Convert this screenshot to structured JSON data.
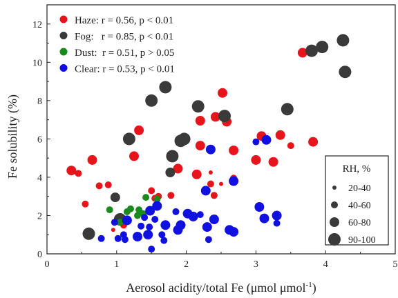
{
  "chart_data": {
    "type": "scatter",
    "xlabel": "Aerosol acidity/total Fe (μmol μmol",
    "xlabel_sup": "-1",
    "xlabel_close": ")",
    "ylabel": "Fe solubility (%)",
    "xlim": [
      0,
      5
    ],
    "ylim": [
      0,
      13
    ],
    "xticks": [
      "0",
      "1",
      "2",
      "3",
      "4",
      "5"
    ],
    "yticks": [
      "0",
      "2",
      "4",
      "6",
      "8",
      "10",
      "12"
    ],
    "grid": false,
    "legend_position": "top-left",
    "series": [
      {
        "name": "Haze: r = 0.56, p < 0.01",
        "color": "#e8141b",
        "points": [
          [
            0.35,
            4.35,
            "60-80"
          ],
          [
            0.45,
            4.2,
            "40-60"
          ],
          [
            0.55,
            2.6,
            "40-60"
          ],
          [
            0.65,
            4.9,
            "60-80"
          ],
          [
            0.75,
            3.55,
            "40-60"
          ],
          [
            0.88,
            3.6,
            "40-60"
          ],
          [
            0.95,
            1.25,
            "20-40"
          ],
          [
            1.1,
            1.5,
            "40-60"
          ],
          [
            1.25,
            5.1,
            "60-80"
          ],
          [
            1.32,
            6.45,
            "60-80"
          ],
          [
            1.5,
            3.3,
            "40-60"
          ],
          [
            1.55,
            2.9,
            "40-60"
          ],
          [
            1.6,
            3.0,
            "40-60"
          ],
          [
            1.78,
            3.05,
            "40-60"
          ],
          [
            1.88,
            4.45,
            "60-80"
          ],
          [
            2.15,
            4.15,
            "60-80"
          ],
          [
            2.2,
            6.95,
            "60-80"
          ],
          [
            2.2,
            5.65,
            "60-80"
          ],
          [
            2.35,
            3.65,
            "40-60"
          ],
          [
            2.35,
            4.25,
            "20-40"
          ],
          [
            2.42,
            7.15,
            "60-80"
          ],
          [
            2.4,
            3.05,
            "40-60"
          ],
          [
            2.5,
            3.65,
            "20-40"
          ],
          [
            2.52,
            8.4,
            "60-80"
          ],
          [
            2.58,
            6.9,
            "60-80"
          ],
          [
            2.68,
            5.4,
            "60-80"
          ],
          [
            2.68,
            3.95,
            "40-60"
          ],
          [
            3.0,
            4.9,
            "60-80"
          ],
          [
            3.08,
            6.15,
            "60-80"
          ],
          [
            3.25,
            4.8,
            "60-80"
          ],
          [
            3.35,
            6.2,
            "60-80"
          ],
          [
            3.5,
            5.65,
            "40-60"
          ],
          [
            3.67,
            10.5,
            "60-80"
          ],
          [
            3.82,
            5.85,
            "60-80"
          ]
        ]
      },
      {
        "name": "Fog:   r = 0.85, p < 0.01",
        "color": "#3a3a3a",
        "points": [
          [
            0.6,
            1.05,
            "90-100"
          ],
          [
            0.98,
            2.95,
            "60-80"
          ],
          [
            1.05,
            1.8,
            "90-100"
          ],
          [
            1.18,
            6.0,
            "90-100"
          ],
          [
            1.5,
            8.0,
            "90-100"
          ],
          [
            1.7,
            8.7,
            "90-100"
          ],
          [
            1.77,
            4.25,
            "60-80"
          ],
          [
            1.8,
            5.1,
            "90-100"
          ],
          [
            1.92,
            5.9,
            "90-100"
          ],
          [
            1.97,
            6.0,
            "90-100"
          ],
          [
            2.17,
            7.7,
            "90-100"
          ],
          [
            2.55,
            7.2,
            "90-100"
          ],
          [
            3.45,
            7.55,
            "90-100"
          ],
          [
            3.8,
            10.6,
            "90-100"
          ],
          [
            3.95,
            10.8,
            "90-100"
          ],
          [
            4.25,
            11.15,
            "90-100"
          ],
          [
            4.28,
            9.5,
            "90-100"
          ]
        ]
      },
      {
        "name": "Dust:  r = 0.51, p > 0.05",
        "color": "#1a8a1a",
        "points": [
          [
            0.9,
            2.3,
            "40-60"
          ],
          [
            1.05,
            1.65,
            "40-60"
          ],
          [
            1.15,
            2.2,
            "40-60"
          ],
          [
            1.2,
            2.35,
            "40-60"
          ],
          [
            1.3,
            2.0,
            "40-60"
          ],
          [
            1.32,
            2.3,
            "40-60"
          ],
          [
            1.38,
            2.1,
            "40-60"
          ],
          [
            1.42,
            2.95,
            "40-60"
          ],
          [
            1.58,
            2.85,
            "40-60"
          ]
        ]
      },
      {
        "name": "Clear: r = 0.53, p < 0.01",
        "color": "#1010e0",
        "points": [
          [
            0.78,
            0.8,
            "40-60"
          ],
          [
            0.97,
            1.65,
            "40-60"
          ],
          [
            1.02,
            0.8,
            "40-60"
          ],
          [
            1.1,
            1.0,
            "40-60"
          ],
          [
            1.12,
            0.75,
            "40-60"
          ],
          [
            1.15,
            1.75,
            "60-80"
          ],
          [
            1.3,
            0.9,
            "60-80"
          ],
          [
            1.35,
            1.45,
            "40-60"
          ],
          [
            1.4,
            1.9,
            "40-60"
          ],
          [
            1.45,
            1.0,
            "60-80"
          ],
          [
            1.47,
            1.4,
            "40-60"
          ],
          [
            1.48,
            2.25,
            "60-80"
          ],
          [
            1.5,
            0.25,
            "40-60"
          ],
          [
            1.55,
            1.8,
            "40-60"
          ],
          [
            1.58,
            2.5,
            "60-80"
          ],
          [
            1.65,
            1.0,
            "40-60"
          ],
          [
            1.68,
            0.7,
            "40-60"
          ],
          [
            1.7,
            1.5,
            "60-80"
          ],
          [
            1.85,
            2.2,
            "40-60"
          ],
          [
            1.88,
            1.25,
            "60-80"
          ],
          [
            1.92,
            1.5,
            "60-80"
          ],
          [
            2.02,
            2.1,
            "60-80"
          ],
          [
            2.1,
            1.95,
            "60-80"
          ],
          [
            2.2,
            2.05,
            "40-60"
          ],
          [
            2.28,
            3.3,
            "60-80"
          ],
          [
            2.3,
            1.4,
            "60-80"
          ],
          [
            2.32,
            0.75,
            "40-60"
          ],
          [
            2.35,
            5.45,
            "60-80"
          ],
          [
            2.4,
            1.8,
            "60-80"
          ],
          [
            2.62,
            1.25,
            "60-80"
          ],
          [
            2.68,
            3.8,
            "60-80"
          ],
          [
            2.68,
            1.15,
            "60-80"
          ],
          [
            3.0,
            5.85,
            "40-60"
          ],
          [
            3.05,
            2.45,
            "60-80"
          ],
          [
            3.12,
            1.85,
            "60-80"
          ],
          [
            3.15,
            5.95,
            "60-80"
          ],
          [
            3.3,
            2.0,
            "60-80"
          ],
          [
            3.3,
            1.6,
            "40-60"
          ]
        ]
      }
    ],
    "size_legend": {
      "title": "RH, %",
      "position": "bottom-right",
      "classes": [
        {
          "label": "20-40",
          "key": "20-40"
        },
        {
          "label": "40-60",
          "key": "40-60"
        },
        {
          "label": "60-80",
          "key": "60-80"
        },
        {
          "label": "90-100",
          "key": "90-100"
        }
      ]
    }
  }
}
